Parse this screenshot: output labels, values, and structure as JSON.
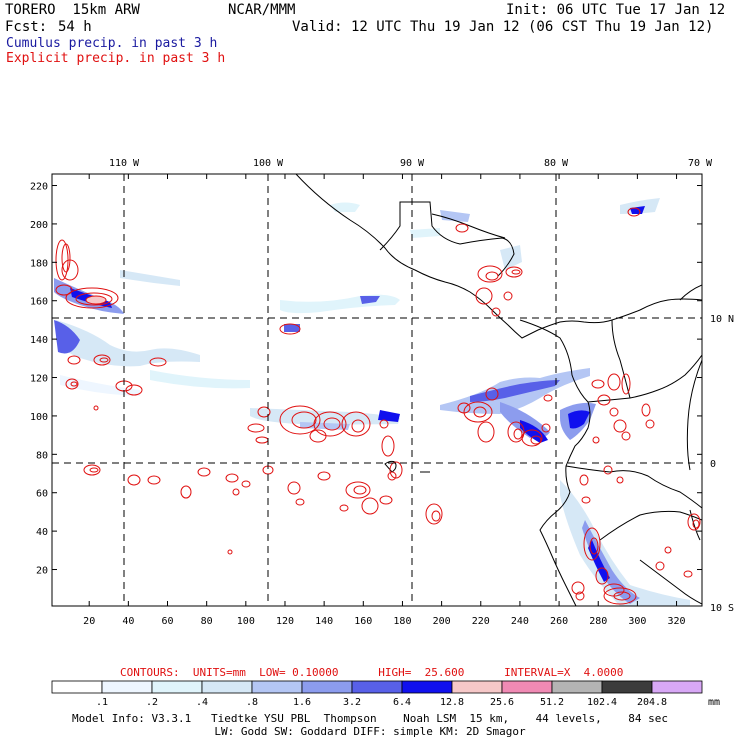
{
  "header": {
    "model": "TORERO  15km ARW",
    "org": "NCAR/MMM",
    "init": "Init: 06 UTC Tue 17 Jan 12",
    "fcst_label": "Fcst:",
    "fcst_value": "54 h",
    "valid": "Valid: 12 UTC Thu 19 Jan 12 (06 CST Thu 19 Jan 12)"
  },
  "legend": {
    "cumulus": "Cumulus precip. in past 3 h",
    "explicit": "Explicit precip. in past 3 h"
  },
  "map": {
    "top_lon_labels": [
      "110 W",
      "100 W",
      "90 W",
      "80 W",
      "70 W"
    ],
    "right_lat_labels": [
      "10 N",
      "0",
      "10 S"
    ],
    "left_ticks": [
      "220",
      "200",
      "180",
      "160",
      "140",
      "120",
      "100",
      "80",
      "60",
      "40",
      "20"
    ],
    "bottom_ticks": [
      "20",
      "40",
      "60",
      "80",
      "100",
      "120",
      "140",
      "160",
      "180",
      "200",
      "220",
      "240",
      "260",
      "280",
      "300",
      "320"
    ]
  },
  "contours_line": "CONTOURS:  UNITS=mm  LOW= 0.10000      HIGH=  25.600      INTERVAL=X  4.0000",
  "colorbar": {
    "labels": [
      ".1",
      ".2",
      ".4",
      ".8",
      "1.6",
      "3.2",
      "6.4",
      "12.8",
      "25.6",
      "51.2",
      "102.4",
      "204.8"
    ],
    "colors": [
      "#ffffff",
      "#eef6ff",
      "#e0f4fb",
      "#d6e8f6",
      "#b4c6f4",
      "#8c9cee",
      "#5860e8",
      "#1010ee",
      "#f6c8c8",
      "#f08ab4",
      "#b4b4b4",
      "#3c3c3c",
      "#d8a8f6"
    ],
    "units": "mm"
  },
  "footer": {
    "line1": "Model Info: V3.3.1   Tiedtke YSU PBL  Thompson    Noah LSM  15 km,    44 levels,    84 sec",
    "line2": "LW: Godd SW: Goddard DIFF: simple KM: 2D Smagor"
  },
  "chart_data": {
    "type": "heatmap",
    "x_range": [
      1,
      333
    ],
    "y_range": [
      1,
      226
    ],
    "grid": true,
    "precip_legend_mm": [
      0.1,
      0.2,
      0.4,
      0.8,
      1.6,
      3.2,
      6.4,
      12.8,
      25.6,
      51.2,
      102.4,
      204.8
    ]
  }
}
